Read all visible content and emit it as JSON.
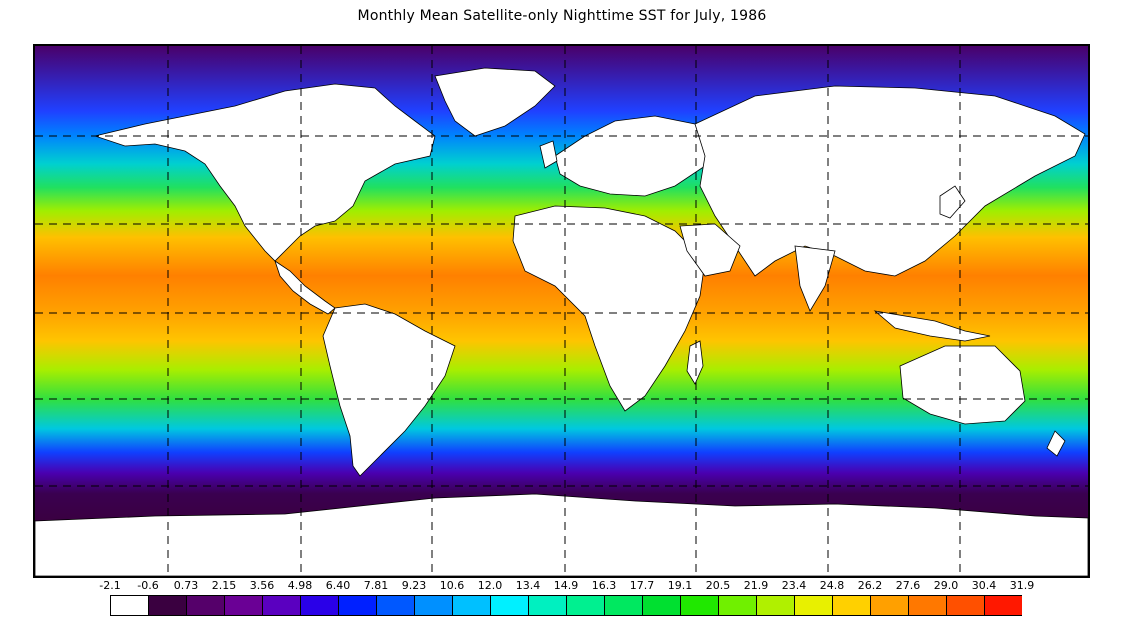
{
  "title": "Monthly Mean Satellite-only Nighttime SST for July, 1986",
  "colorbar": {
    "labels": [
      "-2.1",
      "-0.6",
      "0.73",
      "2.15",
      "3.56",
      "4.98",
      "6.40",
      "7.81",
      "9.23",
      "10.6",
      "12.0",
      "13.4",
      "14.9",
      "16.3",
      "17.7",
      "19.1",
      "20.5",
      "21.9",
      "23.4",
      "24.8",
      "26.2",
      "27.6",
      "29.0",
      "30.4",
      "31.9"
    ],
    "colors": [
      "#ffffff",
      "#3a0040",
      "#55006a",
      "#6a0095",
      "#5a00c0",
      "#2a00e8",
      "#0020ff",
      "#0058ff",
      "#0090ff",
      "#00c0ff",
      "#00f0ff",
      "#00f0c0",
      "#00f090",
      "#00e860",
      "#00e030",
      "#20e800",
      "#70f000",
      "#b0f000",
      "#e8f000",
      "#ffd000",
      "#ffa000",
      "#ff7800",
      "#ff5000",
      "#ff1800"
    ]
  },
  "map": {
    "land_color": "#ffffff",
    "grid_style": "dashed",
    "ocean_bands": [
      {
        "lat": 90,
        "color": "#4a006a"
      },
      {
        "lat": 68,
        "color": "#2040ff"
      },
      {
        "lat": 60,
        "color": "#0080ff"
      },
      {
        "lat": 50,
        "color": "#00d0d0"
      },
      {
        "lat": 42,
        "color": "#20e060"
      },
      {
        "lat": 34,
        "color": "#a0ee00"
      },
      {
        "lat": 25,
        "color": "#ffc000"
      },
      {
        "lat": 12,
        "color": "#ff8000"
      },
      {
        "lat": 0,
        "color": "#ffa000"
      },
      {
        "lat": -10,
        "color": "#ffc400"
      },
      {
        "lat": -20,
        "color": "#a8ee00"
      },
      {
        "lat": -30,
        "color": "#30e040"
      },
      {
        "lat": -40,
        "color": "#00c8e0"
      },
      {
        "lat": -48,
        "color": "#1040ff"
      },
      {
        "lat": -55,
        "color": "#4a00b0"
      },
      {
        "lat": -62,
        "color": "#3a0050"
      },
      {
        "lat": -72,
        "color": "#3a0040"
      }
    ]
  }
}
